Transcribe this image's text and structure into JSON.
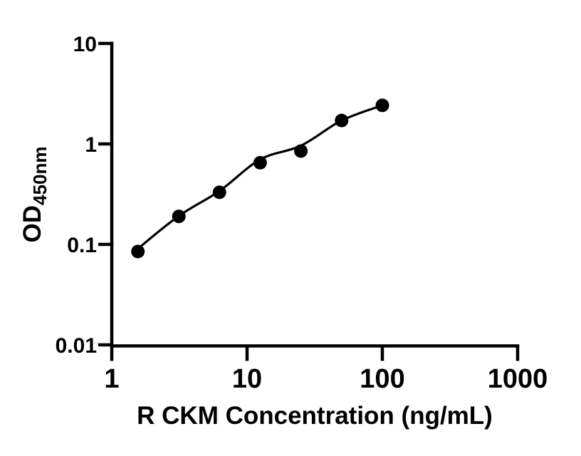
{
  "figure": {
    "background_color": "#ffffff"
  },
  "chart_data": {
    "type": "scatter",
    "subtype": "elisa-standard-curve",
    "xlabel": "R CKM Concentration (ng/mL)",
    "ylabel_main": "OD",
    "ylabel_sub": "450nm",
    "x_scale": "log",
    "y_scale": "log",
    "xlim": [
      1,
      1000
    ],
    "ylim": [
      0.01,
      10
    ],
    "x_tick_labels": [
      "1",
      "10",
      "100",
      "1000"
    ],
    "y_tick_labels": [
      "10",
      "1",
      "0.1",
      "0.01"
    ],
    "grid": false,
    "legend": false,
    "ink_color": "#000000",
    "marker": "filled-circle",
    "points": [
      {
        "conc_ng_ml": 1.56,
        "od": 0.085
      },
      {
        "conc_ng_ml": 3.13,
        "od": 0.19
      },
      {
        "conc_ng_ml": 6.25,
        "od": 0.33
      },
      {
        "conc_ng_ml": 12.5,
        "od": 0.65
      },
      {
        "conc_ng_ml": 25,
        "od": 0.85
      },
      {
        "conc_ng_ml": 50,
        "od": 1.71
      },
      {
        "conc_ng_ml": 100,
        "od": 2.42
      }
    ],
    "fit_curve_points": [
      {
        "conc_ng_ml": 1.55,
        "od": 0.09
      },
      {
        "conc_ng_ml": 3.13,
        "od": 0.192
      },
      {
        "conc_ng_ml": 6.25,
        "od": 0.34
      },
      {
        "conc_ng_ml": 12.5,
        "od": 0.7
      },
      {
        "conc_ng_ml": 25,
        "od": 0.96
      },
      {
        "conc_ng_ml": 50,
        "od": 1.71
      },
      {
        "conc_ng_ml": 100,
        "od": 2.42
      }
    ]
  }
}
